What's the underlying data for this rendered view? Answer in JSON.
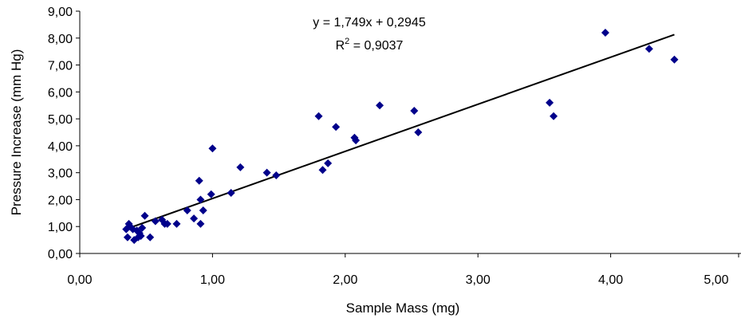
{
  "chart_data": {
    "type": "scatter",
    "title": "",
    "xlabel": "Sample Mass (mg)",
    "ylabel": "Pressure Increase (mm Hg)",
    "xlim": [
      0,
      5
    ],
    "ylim": [
      0,
      9
    ],
    "x_ticks": [
      "0,00",
      "1,00",
      "2,00",
      "3,00",
      "4,00",
      "5,00"
    ],
    "y_ticks": [
      "0,00",
      "1,00",
      "2,00",
      "3,00",
      "4,00",
      "5,00",
      "6,00",
      "7,00",
      "8,00",
      "9,00"
    ],
    "grid": false,
    "legend": "none",
    "marker": "diamond",
    "marker_color": "#00008B",
    "points": [
      {
        "x": 0.35,
        "y": 0.9
      },
      {
        "x": 0.36,
        "y": 0.6
      },
      {
        "x": 0.37,
        "y": 1.1
      },
      {
        "x": 0.38,
        "y": 1.0
      },
      {
        "x": 0.4,
        "y": 0.9
      },
      {
        "x": 0.41,
        "y": 0.5
      },
      {
        "x": 0.43,
        "y": 0.85
      },
      {
        "x": 0.44,
        "y": 0.6
      },
      {
        "x": 0.45,
        "y": 0.75
      },
      {
        "x": 0.46,
        "y": 0.65
      },
      {
        "x": 0.47,
        "y": 0.95
      },
      {
        "x": 0.49,
        "y": 1.4
      },
      {
        "x": 0.53,
        "y": 0.6
      },
      {
        "x": 0.57,
        "y": 1.2
      },
      {
        "x": 0.62,
        "y": 1.25
      },
      {
        "x": 0.64,
        "y": 1.1
      },
      {
        "x": 0.66,
        "y": 1.1
      },
      {
        "x": 0.73,
        "y": 1.1
      },
      {
        "x": 0.81,
        "y": 1.6
      },
      {
        "x": 0.86,
        "y": 1.3
      },
      {
        "x": 0.9,
        "y": 2.7
      },
      {
        "x": 0.91,
        "y": 2.0
      },
      {
        "x": 0.91,
        "y": 1.1
      },
      {
        "x": 0.93,
        "y": 1.6
      },
      {
        "x": 0.99,
        "y": 2.2
      },
      {
        "x": 1.0,
        "y": 3.9
      },
      {
        "x": 1.14,
        "y": 2.25
      },
      {
        "x": 1.21,
        "y": 3.2
      },
      {
        "x": 1.41,
        "y": 3.0
      },
      {
        "x": 1.48,
        "y": 2.9
      },
      {
        "x": 1.8,
        "y": 5.1
      },
      {
        "x": 1.83,
        "y": 3.1
      },
      {
        "x": 1.87,
        "y": 3.35
      },
      {
        "x": 1.93,
        "y": 4.7
      },
      {
        "x": 2.07,
        "y": 4.3
      },
      {
        "x": 2.08,
        "y": 4.2
      },
      {
        "x": 2.26,
        "y": 5.5
      },
      {
        "x": 2.52,
        "y": 5.3
      },
      {
        "x": 2.55,
        "y": 4.5
      },
      {
        "x": 3.54,
        "y": 5.6
      },
      {
        "x": 3.57,
        "y": 5.1
      },
      {
        "x": 3.96,
        "y": 8.2
      },
      {
        "x": 4.29,
        "y": 7.6
      },
      {
        "x": 4.48,
        "y": 7.2
      }
    ],
    "trendline": {
      "type": "linear",
      "slope": 1.749,
      "intercept": 0.2945,
      "x_range": [
        0.35,
        4.48
      ],
      "equation_label": "y = 1,749x + 0,2945",
      "r2_prefix": "R",
      "r2_sup": "2",
      "r2_suffix": " = 0,9037"
    }
  }
}
